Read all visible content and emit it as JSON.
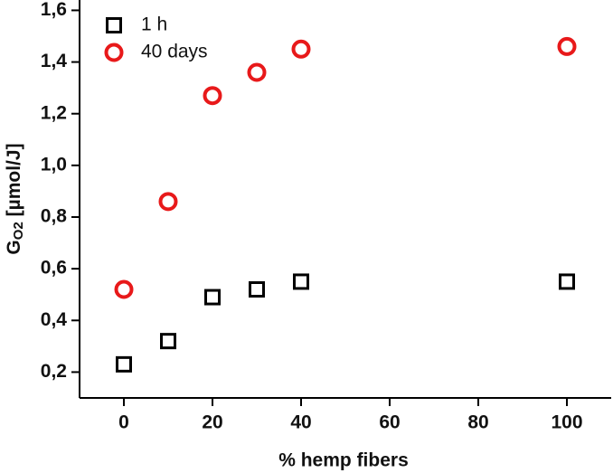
{
  "chart_data": {
    "type": "scatter",
    "x_label": "% hemp fibers",
    "y_label": {
      "main": "G",
      "sub": "O2",
      "unit": " [µmol/J]"
    },
    "series": [
      {
        "name": "1 h",
        "color": "#000000",
        "marker": "square",
        "x": [
          0,
          10,
          20,
          30,
          40,
          100
        ],
        "values": [
          0.23,
          0.32,
          0.49,
          0.52,
          0.55,
          0.55
        ]
      },
      {
        "name": "40 days",
        "color": "#e8191a",
        "marker": "circle",
        "x": [
          0,
          10,
          20,
          30,
          40,
          100
        ],
        "values": [
          0.52,
          0.86,
          1.27,
          1.36,
          1.45,
          1.46
        ]
      }
    ],
    "xlim": [
      -10,
      110
    ],
    "xticks": [
      0,
      20,
      40,
      60,
      80,
      100
    ],
    "ylim": [
      0.1,
      1.64
    ],
    "yticks": [
      {
        "value": 0.2,
        "label": "0,2"
      },
      {
        "value": 0.4,
        "label": "0,4"
      },
      {
        "value": 0.6,
        "label": "0,6"
      },
      {
        "value": 0.8,
        "label": "0,8"
      },
      {
        "value": 1.0,
        "label": "1,0"
      },
      {
        "value": 1.2,
        "label": "1,2"
      },
      {
        "value": 1.4,
        "label": "1,4"
      },
      {
        "value": 1.6,
        "label": "1,6"
      }
    ],
    "legend": "top-left",
    "grid": false
  }
}
